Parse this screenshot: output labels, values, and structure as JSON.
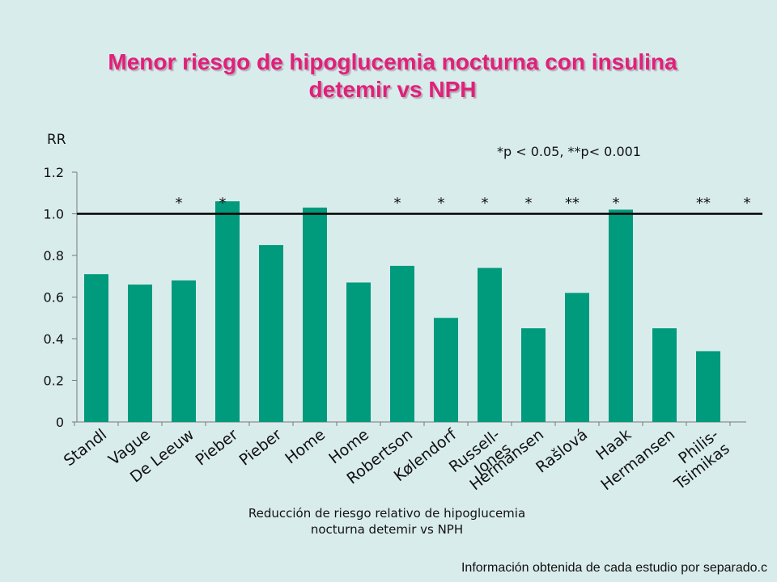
{
  "title_lines": [
    "Menor riesgo de hipoglucemia nocturna con insulina",
    "detemir  vs NPH"
  ],
  "footnote": "Información obtenida de cada estudio por separado.c",
  "colors": {
    "bar": "#009a7c",
    "title": "#e0207a",
    "background": "#d9ecec"
  },
  "chart_data": {
    "type": "bar",
    "ylabel": "RR",
    "xlabel": "Reducción de riesgo relativo de hipoglucemia nocturna detemir vs NPH",
    "xlabel_lines": [
      "Reducción de riesgo relativo de hipoglucemia",
      "nocturna detemir vs NPH"
    ],
    "significance_note": "*p < 0.05, **p< 0.001",
    "ylim": [
      0,
      1.2
    ],
    "yticks": [
      "0",
      "0.2",
      "0.4",
      "0.6",
      "0.8",
      "1.0",
      "1.2"
    ],
    "reference_line": 1.0,
    "categories": [
      "Standl",
      "Vague",
      "De Leeuw",
      "Pieber",
      "Pieber",
      "Home",
      "Home",
      "Robertson",
      "Kølendorf",
      "Russell-Jones",
      "Hermansen",
      "Rašlová",
      "Haak",
      "Hermansen",
      "Philis-Tsimikas"
    ],
    "values": [
      0.71,
      0.66,
      0.68,
      1.06,
      0.85,
      1.03,
      0.67,
      0.75,
      0.5,
      0.74,
      0.45,
      0.62,
      1.02,
      0.45,
      0.34
    ],
    "markers": [
      "",
      "*",
      "*",
      "",
      "",
      "",
      "*",
      "*",
      "*",
      "*",
      "**",
      "*",
      "",
      "**",
      "*"
    ],
    "grid": false,
    "legend": "none"
  }
}
